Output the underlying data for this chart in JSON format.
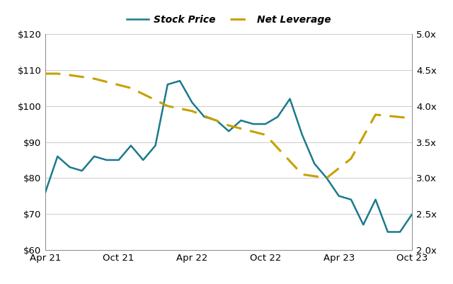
{
  "stock_price_x": [
    0,
    1,
    2,
    3,
    4,
    5,
    6,
    7,
    8,
    9,
    10,
    11,
    12,
    13,
    14,
    15,
    16,
    17,
    18,
    19,
    20,
    21,
    22,
    23,
    24,
    25,
    26,
    27,
    28,
    29,
    30
  ],
  "stock_price_y": [
    76,
    86,
    83,
    82,
    86,
    85,
    85,
    89,
    85,
    89,
    106,
    107,
    101,
    97,
    96,
    93,
    96,
    95,
    95,
    97,
    102,
    92,
    84,
    80,
    75,
    74,
    67,
    74,
    65,
    65,
    70
  ],
  "leverage_x": [
    0,
    1,
    2,
    4,
    7,
    10,
    12,
    15,
    18,
    21,
    23,
    25,
    27,
    30
  ],
  "leverage_y": [
    4.45,
    4.45,
    4.43,
    4.38,
    4.25,
    4.0,
    3.93,
    3.73,
    3.6,
    3.05,
    3.0,
    3.27,
    3.88,
    3.83
  ],
  "xtick_positions": [
    0,
    6,
    12,
    18,
    24,
    30
  ],
  "xtick_labels": [
    "Apr 21",
    "Oct 21",
    "Apr 22",
    "Oct 22",
    "Apr 23",
    "Oct 23"
  ],
  "stock_color": "#1b7a8c",
  "leverage_color": "#c8a000",
  "ylim_left": [
    60,
    120
  ],
  "ylim_right": [
    2.0,
    5.0
  ],
  "yticks_left": [
    60,
    70,
    80,
    90,
    100,
    110,
    120
  ],
  "yticks_right": [
    2.0,
    2.5,
    3.0,
    3.5,
    4.0,
    4.5,
    5.0
  ],
  "stock_label": "Stock Price",
  "leverage_label": "Net Leverage",
  "bg_color": "#ffffff",
  "grid_color": "#cccccc",
  "figsize": [
    6.4,
    4.01
  ],
  "dpi": 100
}
